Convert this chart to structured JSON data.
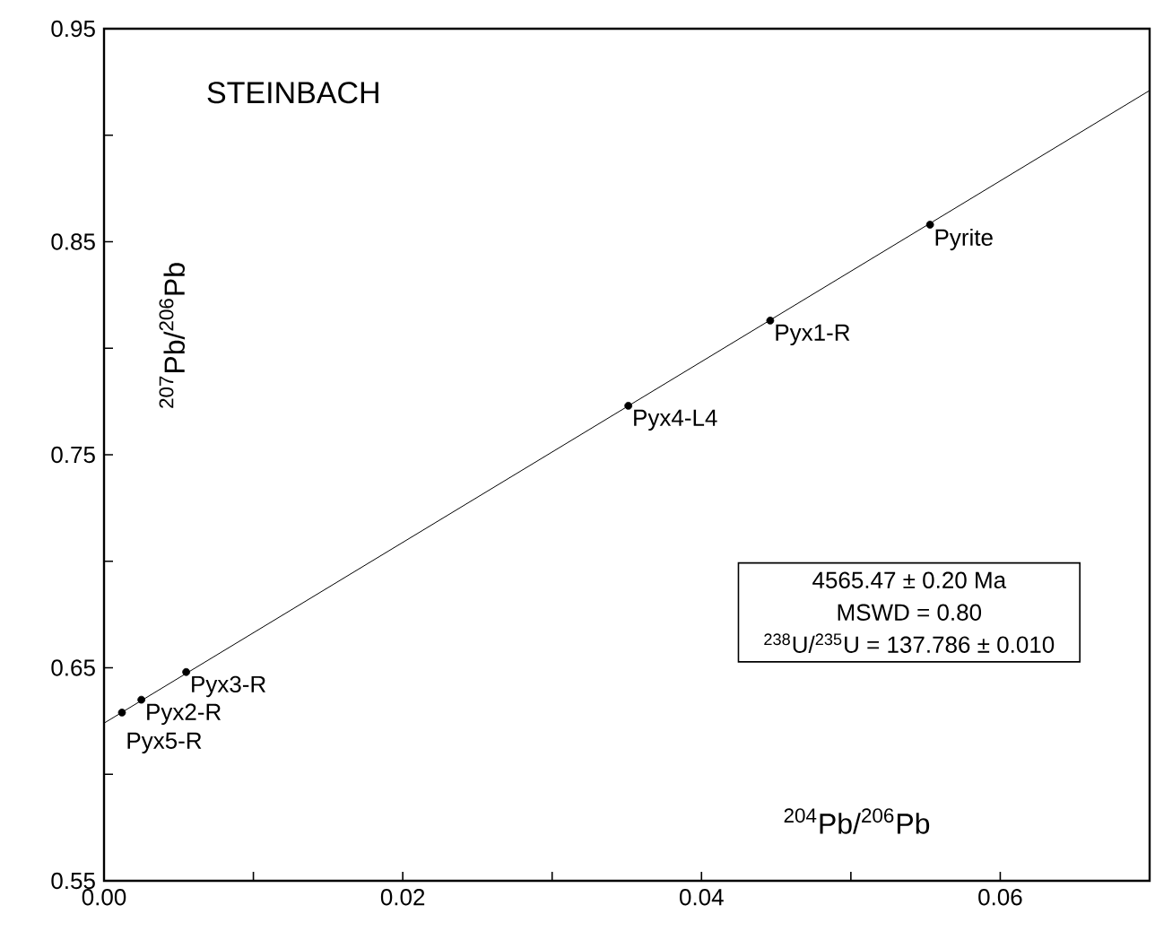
{
  "chart_data": {
    "type": "scatter",
    "title": "STEINBACH",
    "xlabel": "$^{204}$Pb/$^{206}$Pb",
    "ylabel": "$^{207}$Pb/$^{206}$Pb",
    "xlim": [
      0,
      0.07
    ],
    "ylim": [
      0.55,
      0.95
    ],
    "xticks": [
      {
        "value": 0,
        "label": "0.00"
      },
      {
        "value": 0.01,
        "label": null
      },
      {
        "value": 0.02,
        "label": "0.02"
      },
      {
        "value": 0.03,
        "label": null
      },
      {
        "value": 0.04,
        "label": "0.04"
      },
      {
        "value": 0.05,
        "label": null
      },
      {
        "value": 0.06,
        "label": "0.06"
      }
    ],
    "yticks": [
      0.55,
      {
        "value": 0.6,
        "label": null
      },
      0.65,
      {
        "value": 0.7,
        "label": null
      },
      0.75,
      {
        "value": 0.8,
        "label": null
      },
      0.85,
      {
        "value": 0.9,
        "label": null
      },
      0.95
    ],
    "series": [
      {
        "type": "line",
        "marker": "none",
        "color": "#000000",
        "x": [
          0,
          0.07
        ],
        "values": [
          0.624,
          0.921
        ]
      },
      {
        "type": "scatter",
        "marker": "circle",
        "color": "#000000",
        "x": [
          0.0012,
          0.0025,
          0.0055,
          0.0351,
          0.0446,
          0.0553
        ],
        "values": [
          0.629,
          0.635,
          0.648,
          0.773,
          0.813,
          0.858
        ]
      }
    ],
    "annotations": [
      {
        "text": "Pyx5-R",
        "x": 0.0012,
        "y": 0.629
      },
      {
        "text": "Pyx2-R",
        "x": 0.0025,
        "y": 0.635
      },
      {
        "text": "Pyx3-R",
        "x": 0.0055,
        "y": 0.648
      },
      {
        "text": "Pyx4-L4",
        "x": 0.0351,
        "y": 0.773
      },
      {
        "text": "Pyx1-R",
        "x": 0.0446,
        "y": 0.813
      },
      {
        "text": "Pyrite",
        "x": 0.0553,
        "y": 0.858
      },
      "4565.47 ± 0.20 Ma",
      "MSWD = 0.80",
      "$^{238}$U/$^{235}$U = 137.786 ± 0.010"
    ]
  }
}
